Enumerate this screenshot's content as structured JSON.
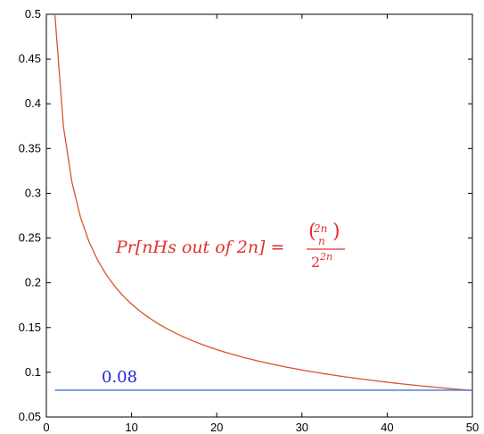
{
  "chart_data": {
    "type": "line",
    "title": "",
    "xlabel": "",
    "ylabel": "",
    "xlim": [
      0,
      50
    ],
    "ylim": [
      0.05,
      0.5
    ],
    "x_ticks": [
      0,
      10,
      20,
      30,
      40,
      50
    ],
    "y_ticks": [
      0.05,
      0.1,
      0.15,
      0.2,
      0.25,
      0.3,
      0.35,
      0.4,
      0.45,
      0.5
    ],
    "grid": false,
    "legend": "none",
    "series": [
      {
        "x": [
          1,
          2,
          3,
          4,
          5,
          6,
          7,
          8,
          9,
          10,
          12,
          15,
          20,
          25,
          30,
          35,
          40,
          45,
          50
        ],
        "y": [
          0.5,
          0.375,
          0.3125,
          0.2734,
          0.2461,
          0.2256,
          0.2095,
          0.1964,
          0.1855,
          0.1762,
          0.1612,
          0.1445,
          0.1254,
          0.1123,
          0.1026,
          0.095,
          0.0889,
          0.0838,
          0.0796
        ],
        "color": "#d9542b"
      },
      {
        "x": [
          1,
          50
        ],
        "y": [
          0.08,
          0.08
        ],
        "color": "#3c78d8"
      }
    ],
    "annotations": [
      {
        "id": "formula",
        "lhs": "Pr[nHs out of 2n] =",
        "binom_top": "2n",
        "binom_bottom": "n",
        "denominator_base": "2",
        "denominator_exp": "2n",
        "color": "#e03030",
        "at_x": 9,
        "at_y": 0.245
      },
      {
        "id": "line-label",
        "text": "0.08",
        "color": "#2222dd",
        "at_x": 7,
        "at_y": 0.085
      }
    ]
  }
}
